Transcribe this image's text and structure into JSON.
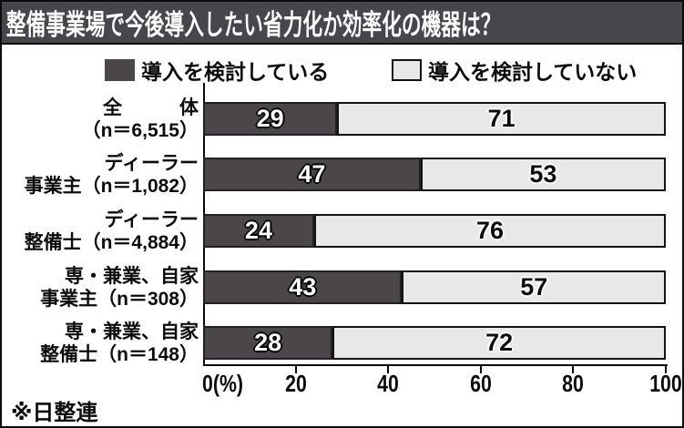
{
  "title": "整備事業場で今後導入したい省力化か効率化の機器は？",
  "source": "※日整連",
  "legend": [
    {
      "label": "導入を検討している",
      "color": "#4a464a"
    },
    {
      "label": "導入を検討していない",
      "color": "#e9e8e9"
    }
  ],
  "colors": {
    "title_bar_bg": "#48454b",
    "title_text": "#ffffff",
    "considering_bar": "#4a464a",
    "not_considering_bar": "#e9e8e9",
    "axis": "#0c0c0c"
  },
  "chart_data": {
    "type": "bar",
    "orientation": "horizontal",
    "stacked": true,
    "unit": "%",
    "title": "整備事業場で今後導入したい省力化か効率化の機器は？",
    "categories": [
      {
        "line1": "全　　　体",
        "line2": "（n＝6,515）"
      },
      {
        "line1": "ディーラー",
        "line2": "事業主（n＝1,082）"
      },
      {
        "line1": "ディーラー",
        "line2": "整備士（n＝4,884）"
      },
      {
        "line1": "専・兼業、自家",
        "line2": "事業主（n＝308）"
      },
      {
        "line1": "専・兼業、自家",
        "line2": "整備士（n＝148）"
      }
    ],
    "series": [
      {
        "name": "導入を検討している",
        "values": [
          29,
          47,
          24,
          43,
          28
        ]
      },
      {
        "name": "導入を検討していない",
        "values": [
          71,
          53,
          76,
          57,
          72
        ]
      }
    ],
    "xlim": [
      0,
      100
    ],
    "xticks": [
      "0(%)",
      "20",
      "40",
      "60",
      "80",
      "100"
    ],
    "legend_position": "top",
    "grid": false
  }
}
